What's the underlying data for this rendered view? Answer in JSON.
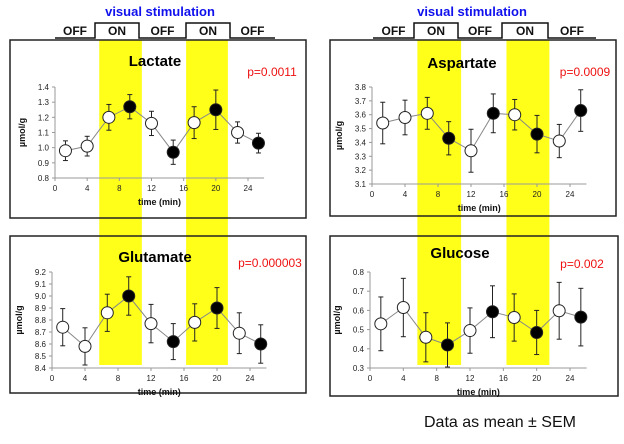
{
  "header": {
    "stim_title": "visual stimulation",
    "phases": [
      "OFF",
      "ON",
      "OFF",
      "ON",
      "OFF"
    ],
    "stim_title_color": "#1010ee"
  },
  "footer": "Data as mean ± SEM",
  "colors": {
    "stimulation": "#ffff1a",
    "p_value": "#ee1111"
  },
  "chart_data": [
    {
      "type": "line",
      "title": "Lactate",
      "pvalue": "p=0.0011",
      "xlabel": "time (min)",
      "ylabel": "µmol/g",
      "xlim": [
        0,
        26
      ],
      "xticks": [
        0,
        4,
        8,
        12,
        16,
        20,
        24
      ],
      "ylim": [
        0.8,
        1.4
      ],
      "yticks": [
        "0.8",
        "0.9",
        "1.0",
        "1.1",
        "1.2",
        "1.3",
        "1.4"
      ],
      "stimulation_on": [
        [
          5.5,
          10.8
        ],
        [
          16.3,
          21.5
        ]
      ],
      "x": [
        1.3,
        4,
        6.7,
        9.3,
        12,
        14.7,
        17.3,
        20,
        22.7,
        25.3
      ],
      "y": [
        0.98,
        1.01,
        1.2,
        1.27,
        1.16,
        0.97,
        1.165,
        1.25,
        1.1,
        1.03
      ],
      "sem": [
        0.065,
        0.065,
        0.085,
        0.08,
        0.08,
        0.08,
        0.105,
        0.13,
        0.07,
        0.065
      ],
      "filled": [
        false,
        false,
        false,
        true,
        false,
        true,
        false,
        true,
        false,
        true
      ]
    },
    {
      "type": "line",
      "title": "Aspartate",
      "pvalue": "p=0.0009",
      "xlabel": "time (min)",
      "ylabel": "µmol/g",
      "xlim": [
        0,
        26
      ],
      "xticks": [
        0,
        4,
        8,
        12,
        16,
        20,
        24
      ],
      "ylim": [
        3.1,
        3.8
      ],
      "yticks": [
        "3.1",
        "3.2",
        "3.3",
        "3.4",
        "3.5",
        "3.6",
        "3.7",
        "3.8"
      ],
      "stimulation_on": [
        [
          5.5,
          10.8
        ],
        [
          16.3,
          21.5
        ]
      ],
      "x": [
        1.3,
        4,
        6.7,
        9.3,
        12,
        14.7,
        17.3,
        20,
        22.7,
        25.3
      ],
      "y": [
        3.54,
        3.58,
        3.61,
        3.43,
        3.34,
        3.61,
        3.6,
        3.46,
        3.41,
        3.63
      ],
      "sem": [
        0.15,
        0.125,
        0.115,
        0.12,
        0.155,
        0.14,
        0.11,
        0.135,
        0.12,
        0.15
      ],
      "filled": [
        false,
        false,
        false,
        true,
        false,
        true,
        false,
        true,
        false,
        true
      ]
    },
    {
      "type": "line",
      "title": "Glutamate",
      "pvalue": "p=0.000003",
      "xlabel": "time (min)",
      "ylabel": "µmol/g",
      "xlim": [
        0,
        26
      ],
      "xticks": [
        0,
        4,
        8,
        12,
        16,
        20,
        24
      ],
      "ylim": [
        8.4,
        9.2
      ],
      "yticks": [
        "8.4",
        "8.5",
        "8.6",
        "8.7",
        "8.8",
        "8.9",
        "9.0",
        "9.1",
        "9.2"
      ],
      "stimulation_on": [
        [
          5.5,
          10.8
        ],
        [
          16.3,
          21.5
        ]
      ],
      "x": [
        1.3,
        4,
        6.7,
        9.3,
        12,
        14.7,
        17.3,
        20,
        22.7,
        25.3
      ],
      "y": [
        8.74,
        8.58,
        8.86,
        9.0,
        8.77,
        8.62,
        8.78,
        8.9,
        8.69,
        8.6
      ],
      "sem": [
        0.155,
        0.155,
        0.155,
        0.16,
        0.16,
        0.15,
        0.155,
        0.17,
        0.17,
        0.16
      ],
      "filled": [
        false,
        false,
        false,
        true,
        false,
        true,
        false,
        true,
        false,
        true
      ]
    },
    {
      "type": "line",
      "title": "Glucose",
      "pvalue": "p=0.002",
      "xlabel": "time (min)",
      "ylabel": "µmol/g",
      "xlim": [
        0,
        26
      ],
      "xticks": [
        0,
        4,
        8,
        12,
        16,
        20,
        24
      ],
      "ylim": [
        0.3,
        0.8
      ],
      "yticks": [
        "0.3",
        "0.4",
        "0.5",
        "0.6",
        "0.7",
        "0.8"
      ],
      "stimulation_on": [
        [
          5.5,
          10.8
        ],
        [
          16.3,
          21.5
        ]
      ],
      "x": [
        1.3,
        4,
        6.7,
        9.3,
        12,
        14.7,
        17.3,
        20,
        22.7,
        25.3
      ],
      "y": [
        0.53,
        0.615,
        0.46,
        0.42,
        0.495,
        0.593,
        0.563,
        0.485,
        0.598,
        0.565
      ],
      "sem": [
        0.14,
        0.152,
        0.128,
        0.115,
        0.118,
        0.135,
        0.123,
        0.115,
        0.148,
        0.15
      ],
      "filled": [
        false,
        false,
        false,
        true,
        false,
        true,
        false,
        true,
        false,
        true
      ]
    }
  ]
}
